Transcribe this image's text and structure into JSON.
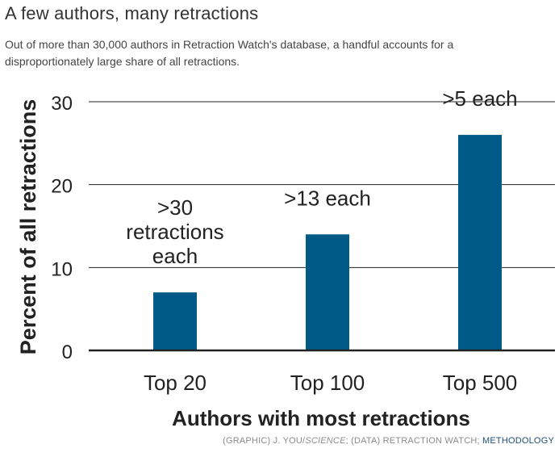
{
  "header": {
    "title": "A few authors, many retractions",
    "subtitle": "Out of more than 30,000 authors in Retraction Watch's database, a handful accounts for a disproportionately large share of all retractions."
  },
  "credit": {
    "graphic_prefix": "(GRAPHIC) J. YOU/",
    "graphic_source": "SCIENCE",
    "data_part": "; (DATA) RETRACTION WATCH; ",
    "link": "METHODOLOGY"
  },
  "colors": {
    "bar": "#005a87",
    "axis": "#222222",
    "grid": "#222222",
    "link": "#1f4e79"
  },
  "chart_data": {
    "type": "bar",
    "categories": [
      "Top 20",
      "Top 100",
      "Top 500"
    ],
    "values": [
      7,
      14,
      26
    ],
    "annotations": [
      ">30\nretractions\neach",
      ">13 each",
      ">5 each"
    ],
    "xlabel": "Authors with most retractions",
    "ylabel": "Percent of all retractions",
    "ylim": [
      0,
      30
    ],
    "yticks": [
      0,
      10,
      20,
      30
    ],
    "grid": true,
    "legend": "none"
  }
}
